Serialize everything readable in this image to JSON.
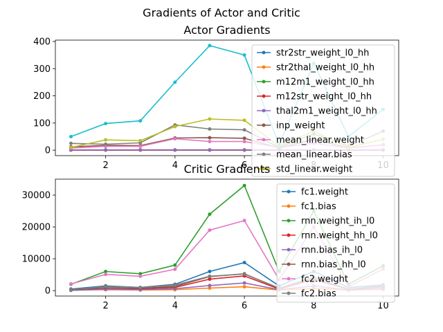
{
  "suptitle": "Gradients of Actor and Critic",
  "chart_data": [
    {
      "type": "line",
      "title": "Actor Gradients",
      "xlabel": "",
      "ylabel": "",
      "x": [
        1,
        2,
        3,
        4,
        5,
        6,
        7,
        8,
        9,
        10
      ],
      "xlim": [
        0.55,
        10.45
      ],
      "ylim": [
        -20,
        405
      ],
      "xticks": [
        2,
        4,
        6,
        8,
        10
      ],
      "yticks": [
        0,
        100,
        200,
        300,
        400
      ],
      "grid": false,
      "legend_loc": "right",
      "series": [
        {
          "name": "str2str_weight_l0_hh",
          "color": "#1f77b4",
          "values": [
            0.5,
            0.5,
            0.5,
            0.5,
            0.5,
            0.5,
            0.5,
            0.5,
            0.5,
            0.5
          ]
        },
        {
          "name": "str2thal_weight_l0_hh",
          "color": "#ff7f0e",
          "values": [
            0.5,
            0.5,
            0.5,
            0.5,
            0.5,
            0.5,
            0.5,
            0.5,
            0.5,
            0.5
          ]
        },
        {
          "name": "m12m1_weight_l0_hh",
          "color": "#2ca02c",
          "values": [
            0.5,
            0.5,
            0.5,
            0.5,
            0.5,
            0.5,
            0.5,
            0.5,
            0.5,
            0.5
          ]
        },
        {
          "name": "m12str_weight_l0_hh",
          "color": "#d62728",
          "values": [
            0.5,
            0.5,
            0.5,
            0.5,
            0.5,
            0.5,
            0.5,
            0.5,
            0.5,
            0.5
          ]
        },
        {
          "name": "thal2m1_weight_l0_hh",
          "color": "#9467bd",
          "values": [
            1,
            1,
            1,
            1,
            1,
            1,
            1,
            1,
            1,
            1
          ]
        },
        {
          "name": "inp_weight",
          "color": "#8c564b",
          "values": [
            12,
            18,
            17,
            45,
            46,
            44,
            8,
            40,
            8,
            20
          ]
        },
        {
          "name": "mean_linear.weight",
          "color": "#e377c2",
          "values": [
            8,
            14,
            14,
            42,
            32,
            32,
            10,
            25,
            8,
            20
          ]
        },
        {
          "name": "mean_linear.bias",
          "color": "#7f7f7f",
          "values": [
            25,
            22,
            27,
            93,
            78,
            75,
            10,
            60,
            15,
            70
          ]
        },
        {
          "name": "std_linear.weight",
          "color": "#bcbd22",
          "values": [
            10,
            38,
            35,
            87,
            115,
            110,
            15,
            70,
            10,
            40
          ]
        },
        {
          "name": "",
          "color": "#17becf",
          "values": [
            50,
            98,
            108,
            250,
            385,
            350,
            20,
            320,
            50,
            150
          ]
        }
      ]
    },
    {
      "type": "line",
      "title": "Critic Gradients",
      "xlabel": "",
      "ylabel": "",
      "x": [
        1,
        2,
        3,
        4,
        5,
        6,
        7,
        8,
        9,
        10
      ],
      "xlim": [
        0.55,
        10.45
      ],
      "ylim": [
        -1700,
        35000
      ],
      "xticks": [
        2,
        4,
        6,
        8,
        10
      ],
      "yticks": [
        0,
        10000,
        20000,
        30000
      ],
      "grid": false,
      "legend_loc": "right",
      "series": [
        {
          "name": "fc1.weight",
          "color": "#1f77b4",
          "values": [
            500,
            1500,
            1000,
            2000,
            6000,
            8800,
            1500,
            6000,
            1000,
            1800
          ]
        },
        {
          "name": "fc1.bias",
          "color": "#ff7f0e",
          "values": [
            100,
            300,
            200,
            300,
            800,
            1200,
            200,
            700,
            200,
            400
          ]
        },
        {
          "name": "rnn.weight_ih_l0",
          "color": "#2ca02c",
          "values": [
            2000,
            6000,
            5300,
            8000,
            24000,
            33000,
            6000,
            25000,
            2000,
            7800
          ]
        },
        {
          "name": "rnn.weight_hh_l0",
          "color": "#d62728",
          "values": [
            200,
            800,
            600,
            1000,
            3600,
            4600,
            500,
            3500,
            400,
            1200
          ]
        },
        {
          "name": "rnn.bias_ih_l0",
          "color": "#9467bd",
          "values": [
            100,
            400,
            300,
            600,
            1600,
            2400,
            300,
            1500,
            200,
            700
          ]
        },
        {
          "name": "rnn.bias_hh_l0",
          "color": "#8c564b",
          "values": [
            200,
            900,
            700,
            1300,
            4400,
            5300,
            700,
            4000,
            500,
            1400
          ]
        },
        {
          "name": "fc2.weight",
          "color": "#e377c2",
          "values": [
            2100,
            5100,
            4500,
            6700,
            19000,
            22000,
            3500,
            20000,
            1200,
            6800
          ]
        },
        {
          "name": "fc2.bias",
          "color": "#7f7f7f",
          "values": [
            300,
            1300,
            1000,
            1700,
            4500,
            5200,
            800,
            4200,
            500,
            1500
          ]
        }
      ]
    }
  ]
}
